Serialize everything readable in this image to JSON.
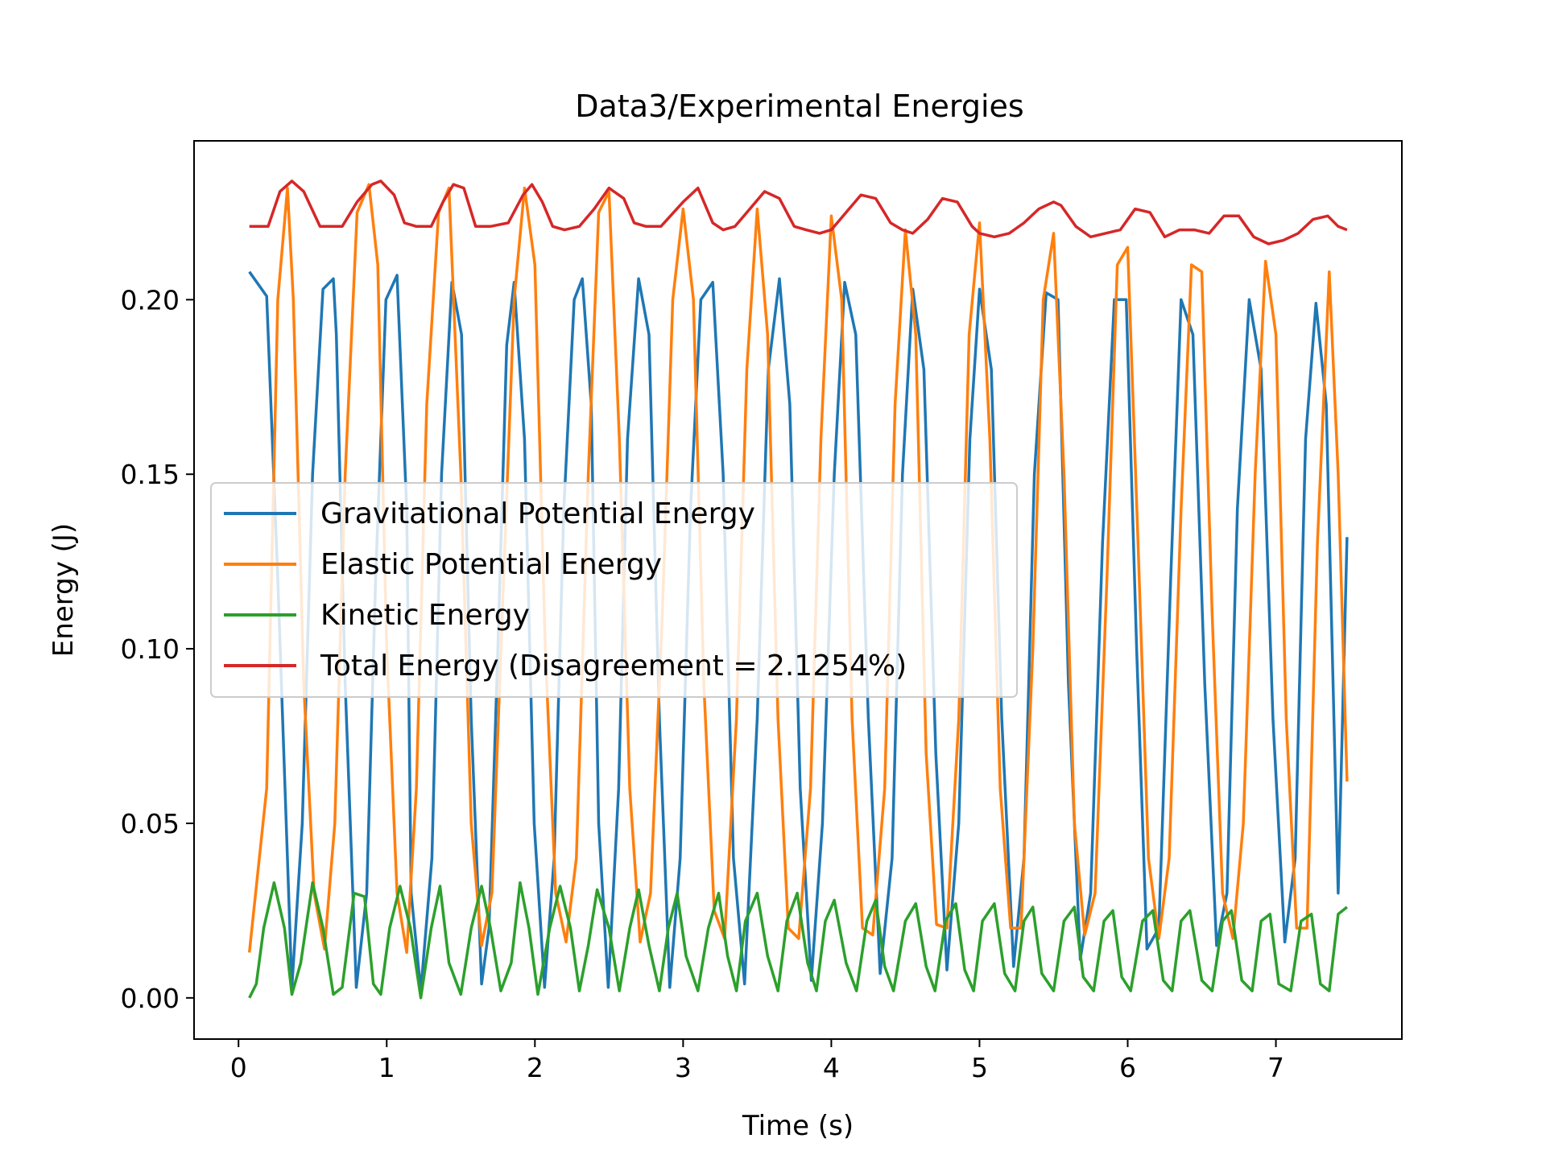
{
  "chart_data": {
    "type": "line",
    "title": "Data3/Experimental Energies",
    "xlabel": "Time (s)",
    "ylabel": "Energy (J)",
    "xlim": [
      -0.3,
      7.85
    ],
    "ylim": [
      -0.0118,
      0.2455
    ],
    "xticks": [
      0,
      1,
      2,
      3,
      4,
      5,
      6,
      7
    ],
    "xtick_labels": [
      "0",
      "1",
      "2",
      "3",
      "4",
      "5",
      "6",
      "7"
    ],
    "yticks": [
      0.0,
      0.05,
      0.1,
      0.15,
      0.2
    ],
    "ytick_labels": [
      "0.00",
      "0.05",
      "0.10",
      "0.15",
      "0.20"
    ],
    "grid": false,
    "legend_position": "center-left",
    "time": {
      "start": 0.073,
      "end": 7.48,
      "count": 224
    },
    "series": [
      {
        "name": "Gravitational Potential Energy",
        "color": "#1f77b4",
        "x": [
          0.073,
          0.19,
          0.265,
          0.36,
          0.43,
          0.5,
          0.57,
          0.64,
          0.66,
          0.72,
          0.795,
          0.865,
          0.925,
          0.995,
          1.07,
          1.135,
          1.165,
          1.23,
          1.305,
          1.37,
          1.44,
          1.505,
          1.57,
          1.64,
          1.69,
          1.75,
          1.81,
          1.86,
          1.93,
          1.995,
          2.065,
          2.13,
          2.195,
          2.265,
          2.32,
          2.38,
          2.43,
          2.495,
          2.565,
          2.625,
          2.7,
          2.77,
          2.84,
          2.91,
          2.98,
          3.05,
          3.12,
          3.2,
          3.27,
          3.34,
          3.415,
          3.5,
          3.575,
          3.65,
          3.72,
          3.79,
          3.865,
          3.94,
          4.02,
          4.09,
          4.165,
          4.25,
          4.33,
          4.41,
          4.48,
          4.55,
          4.625,
          4.705,
          4.78,
          4.86,
          4.935,
          5.0,
          5.08,
          5.15,
          5.23,
          5.3,
          5.37,
          5.45,
          5.53,
          5.6,
          5.68,
          5.75,
          5.83,
          5.91,
          5.99,
          6.06,
          6.13,
          6.21,
          6.29,
          6.36,
          6.44,
          6.52,
          6.6,
          6.67,
          6.74,
          6.82,
          6.9,
          6.98,
          7.06,
          7.13,
          7.2,
          7.27,
          7.34,
          7.42,
          7.48
        ],
        "y": [
          0.208,
          0.201,
          0.12,
          0.003,
          0.05,
          0.15,
          0.203,
          0.206,
          0.19,
          0.09,
          0.003,
          0.03,
          0.12,
          0.2,
          0.207,
          0.14,
          0.03,
          0.002,
          0.04,
          0.15,
          0.205,
          0.19,
          0.08,
          0.004,
          0.02,
          0.1,
          0.187,
          0.205,
          0.16,
          0.05,
          0.003,
          0.04,
          0.14,
          0.2,
          0.206,
          0.17,
          0.05,
          0.003,
          0.06,
          0.16,
          0.206,
          0.19,
          0.08,
          0.003,
          0.04,
          0.14,
          0.2,
          0.205,
          0.15,
          0.04,
          0.004,
          0.08,
          0.18,
          0.206,
          0.17,
          0.06,
          0.005,
          0.05,
          0.15,
          0.205,
          0.19,
          0.08,
          0.007,
          0.04,
          0.15,
          0.203,
          0.18,
          0.07,
          0.008,
          0.05,
          0.16,
          0.203,
          0.18,
          0.08,
          0.009,
          0.04,
          0.15,
          0.202,
          0.2,
          0.09,
          0.011,
          0.03,
          0.13,
          0.2,
          0.2,
          0.1,
          0.014,
          0.02,
          0.12,
          0.2,
          0.19,
          0.09,
          0.015,
          0.03,
          0.14,
          0.2,
          0.18,
          0.08,
          0.016,
          0.04,
          0.16,
          0.199,
          0.17,
          0.03,
          0.132
        ]
      },
      {
        "name": "Elastic Potential Energy",
        "color": "#ff7f0e",
        "x": [
          0.073,
          0.19,
          0.265,
          0.33,
          0.37,
          0.44,
          0.51,
          0.58,
          0.65,
          0.72,
          0.8,
          0.88,
          0.94,
          1.0,
          1.07,
          1.135,
          1.2,
          1.27,
          1.35,
          1.42,
          1.5,
          1.57,
          1.64,
          1.71,
          1.78,
          1.86,
          1.93,
          2.0,
          2.07,
          2.14,
          2.21,
          2.28,
          2.36,
          2.43,
          2.5,
          2.57,
          2.64,
          2.71,
          2.78,
          2.86,
          2.93,
          3.0,
          3.07,
          3.14,
          3.21,
          3.28,
          3.36,
          3.43,
          3.5,
          3.57,
          3.64,
          3.71,
          3.78,
          3.86,
          3.93,
          4.0,
          4.07,
          4.14,
          4.21,
          4.28,
          4.36,
          4.43,
          4.5,
          4.57,
          4.64,
          4.71,
          4.78,
          4.86,
          4.93,
          5.0,
          5.07,
          5.14,
          5.21,
          5.28,
          5.36,
          5.43,
          5.5,
          5.57,
          5.64,
          5.71,
          5.78,
          5.86,
          5.93,
          6.0,
          6.07,
          6.14,
          6.21,
          6.28,
          6.36,
          6.43,
          6.5,
          6.57,
          6.64,
          6.71,
          6.78,
          6.86,
          6.93,
          7.0,
          7.07,
          7.14,
          7.21,
          7.28,
          7.36,
          7.42,
          7.48
        ],
        "y": [
          0.013,
          0.06,
          0.2,
          0.232,
          0.2,
          0.09,
          0.03,
          0.014,
          0.05,
          0.15,
          0.225,
          0.233,
          0.21,
          0.1,
          0.03,
          0.013,
          0.06,
          0.17,
          0.225,
          0.232,
          0.15,
          0.05,
          0.015,
          0.03,
          0.11,
          0.2,
          0.232,
          0.21,
          0.1,
          0.03,
          0.016,
          0.04,
          0.15,
          0.225,
          0.231,
          0.16,
          0.06,
          0.016,
          0.03,
          0.11,
          0.2,
          0.226,
          0.2,
          0.09,
          0.025,
          0.017,
          0.08,
          0.18,
          0.226,
          0.19,
          0.08,
          0.02,
          0.017,
          0.06,
          0.16,
          0.224,
          0.2,
          0.08,
          0.02,
          0.018,
          0.06,
          0.17,
          0.22,
          0.19,
          0.07,
          0.021,
          0.02,
          0.08,
          0.19,
          0.222,
          0.16,
          0.06,
          0.02,
          0.02,
          0.1,
          0.2,
          0.219,
          0.15,
          0.05,
          0.018,
          0.03,
          0.12,
          0.21,
          0.215,
          0.13,
          0.04,
          0.017,
          0.04,
          0.14,
          0.21,
          0.208,
          0.11,
          0.03,
          0.017,
          0.05,
          0.15,
          0.211,
          0.19,
          0.08,
          0.02,
          0.02,
          0.13,
          0.208,
          0.15,
          0.062
        ]
      },
      {
        "name": "Kinetic Energy",
        "color": "#2ca02c",
        "x": [
          0.073,
          0.12,
          0.17,
          0.24,
          0.31,
          0.36,
          0.42,
          0.5,
          0.57,
          0.64,
          0.7,
          0.78,
          0.85,
          0.91,
          0.96,
          1.02,
          1.09,
          1.16,
          1.23,
          1.3,
          1.36,
          1.42,
          1.5,
          1.57,
          1.64,
          1.7,
          1.77,
          1.84,
          1.9,
          1.96,
          2.02,
          2.1,
          2.17,
          2.24,
          2.3,
          2.36,
          2.42,
          2.5,
          2.57,
          2.64,
          2.7,
          2.77,
          2.84,
          2.9,
          2.96,
          3.02,
          3.1,
          3.17,
          3.24,
          3.3,
          3.36,
          3.42,
          3.5,
          3.57,
          3.64,
          3.7,
          3.77,
          3.84,
          3.9,
          3.96,
          4.02,
          4.1,
          4.17,
          4.24,
          4.3,
          4.36,
          4.42,
          4.5,
          4.57,
          4.64,
          4.7,
          4.77,
          4.84,
          4.9,
          4.96,
          5.02,
          5.1,
          5.17,
          5.24,
          5.3,
          5.36,
          5.42,
          5.5,
          5.57,
          5.64,
          5.7,
          5.77,
          5.84,
          5.9,
          5.96,
          6.02,
          6.1,
          6.17,
          6.24,
          6.3,
          6.36,
          6.42,
          6.5,
          6.57,
          6.64,
          6.7,
          6.77,
          6.84,
          6.9,
          6.96,
          7.02,
          7.1,
          7.17,
          7.24,
          7.3,
          7.36,
          7.42,
          7.48
        ],
        "y": [
          0.0,
          0.004,
          0.02,
          0.033,
          0.02,
          0.001,
          0.01,
          0.033,
          0.02,
          0.001,
          0.003,
          0.03,
          0.029,
          0.004,
          0.001,
          0.02,
          0.032,
          0.02,
          0.0,
          0.02,
          0.032,
          0.01,
          0.001,
          0.02,
          0.032,
          0.02,
          0.002,
          0.01,
          0.033,
          0.02,
          0.001,
          0.02,
          0.032,
          0.02,
          0.002,
          0.015,
          0.031,
          0.02,
          0.002,
          0.02,
          0.031,
          0.015,
          0.002,
          0.02,
          0.03,
          0.012,
          0.002,
          0.02,
          0.03,
          0.012,
          0.002,
          0.022,
          0.03,
          0.012,
          0.002,
          0.022,
          0.03,
          0.01,
          0.002,
          0.022,
          0.028,
          0.01,
          0.002,
          0.022,
          0.028,
          0.009,
          0.002,
          0.022,
          0.027,
          0.009,
          0.002,
          0.022,
          0.027,
          0.008,
          0.002,
          0.022,
          0.027,
          0.007,
          0.002,
          0.022,
          0.026,
          0.007,
          0.002,
          0.022,
          0.026,
          0.006,
          0.002,
          0.022,
          0.025,
          0.006,
          0.002,
          0.022,
          0.025,
          0.005,
          0.002,
          0.022,
          0.025,
          0.005,
          0.002,
          0.022,
          0.025,
          0.005,
          0.002,
          0.022,
          0.024,
          0.004,
          0.002,
          0.022,
          0.024,
          0.004,
          0.002,
          0.024,
          0.026
        ]
      },
      {
        "name": "Total Energy (Disagreement = 2.1254%)",
        "color": "#d62728",
        "x": [
          0.073,
          0.2,
          0.28,
          0.36,
          0.44,
          0.55,
          0.7,
          0.8,
          0.9,
          0.96,
          1.05,
          1.12,
          1.2,
          1.3,
          1.38,
          1.45,
          1.52,
          1.6,
          1.7,
          1.82,
          1.92,
          1.98,
          2.05,
          2.12,
          2.2,
          2.3,
          2.4,
          2.5,
          2.6,
          2.67,
          2.75,
          2.85,
          3.0,
          3.1,
          3.2,
          3.27,
          3.35,
          3.45,
          3.55,
          3.65,
          3.75,
          3.83,
          3.92,
          4.0,
          4.1,
          4.2,
          4.3,
          4.4,
          4.48,
          4.55,
          4.65,
          4.75,
          4.85,
          4.95,
          5.0,
          5.1,
          5.2,
          5.3,
          5.4,
          5.5,
          5.55,
          5.65,
          5.75,
          5.85,
          5.95,
          6.05,
          6.15,
          6.25,
          6.35,
          6.45,
          6.55,
          6.65,
          6.75,
          6.85,
          6.95,
          7.05,
          7.15,
          7.25,
          7.35,
          7.42,
          7.48
        ],
        "y": [
          0.221,
          0.221,
          0.231,
          0.234,
          0.231,
          0.221,
          0.221,
          0.228,
          0.233,
          0.234,
          0.23,
          0.222,
          0.221,
          0.221,
          0.228,
          0.233,
          0.232,
          0.221,
          0.221,
          0.222,
          0.23,
          0.233,
          0.228,
          0.221,
          0.22,
          0.221,
          0.226,
          0.232,
          0.229,
          0.222,
          0.221,
          0.221,
          0.228,
          0.232,
          0.222,
          0.22,
          0.221,
          0.226,
          0.231,
          0.229,
          0.221,
          0.22,
          0.219,
          0.22,
          0.225,
          0.23,
          0.229,
          0.222,
          0.22,
          0.219,
          0.223,
          0.229,
          0.228,
          0.221,
          0.219,
          0.218,
          0.219,
          0.222,
          0.226,
          0.228,
          0.227,
          0.221,
          0.218,
          0.219,
          0.22,
          0.226,
          0.225,
          0.218,
          0.22,
          0.22,
          0.219,
          0.224,
          0.224,
          0.218,
          0.216,
          0.217,
          0.219,
          0.223,
          0.224,
          0.221,
          0.22
        ]
      }
    ]
  }
}
